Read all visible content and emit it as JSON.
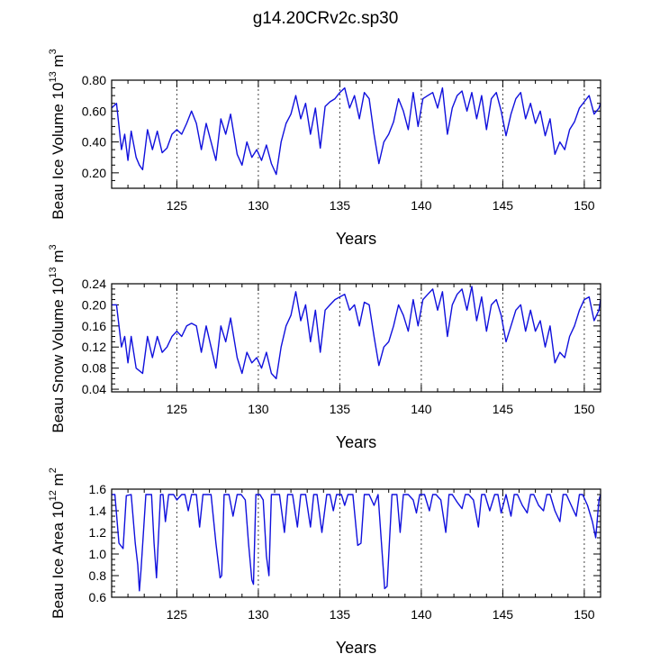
{
  "title": "g14.20CRv2c.sp30",
  "chart_data": [
    {
      "type": "line",
      "ylabel_main": "Beau Ice Volume 10",
      "ylabel_sup1": "13",
      "ylabel_mid": " m",
      "ylabel_sup2": "3",
      "xlabel": "Years",
      "xlim": [
        121,
        151
      ],
      "ylim": [
        0.1,
        0.8
      ],
      "yticks": [
        0.2,
        0.4,
        0.6,
        0.8
      ],
      "ytick_labels": [
        "0.20",
        "0.40",
        "0.60",
        "0.80"
      ],
      "xticks": [
        125,
        130,
        135,
        140,
        145,
        150
      ],
      "xtick_labels": [
        "125",
        "130",
        "135",
        "140",
        "145",
        "150"
      ],
      "series_color": "#1010dd",
      "vlines": [
        125,
        130,
        135,
        140,
        145,
        150
      ],
      "series": [
        {
          "x": [
            121.0,
            121.3,
            121.6,
            121.8,
            122.0,
            122.2,
            122.5,
            122.7,
            122.9,
            123.2,
            123.5,
            123.8,
            124.1,
            124.4,
            124.7,
            125.0,
            125.3,
            125.6,
            125.9,
            126.2,
            126.5,
            126.8,
            127.1,
            127.4,
            127.7,
            128.0,
            128.3,
            128.7,
            129.0,
            129.3,
            129.6,
            129.9,
            130.2,
            130.5,
            130.8,
            131.1,
            131.4,
            131.7,
            132.0,
            132.3,
            132.6,
            132.9,
            133.2,
            133.5,
            133.8,
            134.1,
            134.4,
            134.7,
            135.0,
            135.3,
            135.6,
            135.9,
            136.2,
            136.5,
            136.8,
            137.1,
            137.4,
            137.7,
            138.0,
            138.3,
            138.6,
            138.9,
            139.2,
            139.5,
            139.8,
            140.1,
            140.4,
            140.7,
            141.0,
            141.3,
            141.6,
            141.9,
            142.2,
            142.5,
            142.8,
            143.1,
            143.4,
            143.7,
            144.0,
            144.3,
            144.6,
            144.9,
            145.2,
            145.5,
            145.8,
            146.1,
            146.4,
            146.7,
            147.0,
            147.3,
            147.6,
            147.9,
            148.2,
            148.5,
            148.8,
            149.1,
            149.4,
            149.7,
            150.0,
            150.3,
            150.6,
            150.9,
            151.0
          ],
          "y": [
            0.62,
            0.65,
            0.35,
            0.45,
            0.28,
            0.47,
            0.3,
            0.25,
            0.22,
            0.48,
            0.35,
            0.47,
            0.33,
            0.36,
            0.45,
            0.48,
            0.45,
            0.52,
            0.6,
            0.52,
            0.35,
            0.52,
            0.4,
            0.28,
            0.55,
            0.45,
            0.58,
            0.32,
            0.25,
            0.4,
            0.3,
            0.35,
            0.28,
            0.38,
            0.26,
            0.19,
            0.4,
            0.52,
            0.58,
            0.7,
            0.55,
            0.65,
            0.45,
            0.62,
            0.36,
            0.63,
            0.66,
            0.68,
            0.72,
            0.75,
            0.62,
            0.7,
            0.55,
            0.72,
            0.68,
            0.45,
            0.26,
            0.4,
            0.45,
            0.53,
            0.68,
            0.6,
            0.48,
            0.72,
            0.5,
            0.68,
            0.7,
            0.72,
            0.62,
            0.75,
            0.45,
            0.62,
            0.7,
            0.73,
            0.6,
            0.72,
            0.55,
            0.7,
            0.48,
            0.68,
            0.72,
            0.6,
            0.44,
            0.58,
            0.68,
            0.72,
            0.55,
            0.65,
            0.52,
            0.6,
            0.44,
            0.55,
            0.32,
            0.4,
            0.35,
            0.48,
            0.53,
            0.62,
            0.66,
            0.7,
            0.58,
            0.62,
            0.65
          ]
        }
      ]
    },
    {
      "type": "line",
      "ylabel_main": "Beau Snow Volume 10",
      "ylabel_sup1": "13",
      "ylabel_mid": " m",
      "ylabel_sup2": "3",
      "xlabel": "Years",
      "xlim": [
        121,
        151
      ],
      "ylim": [
        0.035,
        0.24
      ],
      "yticks": [
        0.04,
        0.08,
        0.12,
        0.16,
        0.2,
        0.24
      ],
      "ytick_labels": [
        "0.04",
        "0.08",
        "0.12",
        "0.16",
        "0.20",
        "0.24"
      ],
      "xticks": [
        125,
        130,
        135,
        140,
        145,
        150
      ],
      "xtick_labels": [
        "125",
        "130",
        "135",
        "140",
        "145",
        "150"
      ],
      "series_color": "#1010dd",
      "vlines": [
        125,
        130,
        135,
        140,
        145,
        150
      ],
      "series": [
        {
          "x": [
            121.0,
            121.3,
            121.6,
            121.8,
            122.0,
            122.2,
            122.5,
            122.7,
            122.9,
            123.2,
            123.5,
            123.8,
            124.1,
            124.4,
            124.7,
            125.0,
            125.3,
            125.6,
            125.9,
            126.2,
            126.5,
            126.8,
            127.1,
            127.4,
            127.7,
            128.0,
            128.3,
            128.7,
            129.0,
            129.3,
            129.6,
            129.9,
            130.2,
            130.5,
            130.8,
            131.1,
            131.4,
            131.7,
            132.0,
            132.3,
            132.6,
            132.9,
            133.2,
            133.5,
            133.8,
            134.1,
            134.4,
            134.7,
            135.0,
            135.3,
            135.6,
            135.9,
            136.2,
            136.5,
            136.8,
            137.1,
            137.4,
            137.7,
            138.0,
            138.3,
            138.6,
            138.9,
            139.2,
            139.5,
            139.8,
            140.1,
            140.4,
            140.7,
            141.0,
            141.3,
            141.6,
            141.9,
            142.2,
            142.5,
            142.8,
            143.1,
            143.4,
            143.7,
            144.0,
            144.3,
            144.6,
            144.9,
            145.2,
            145.5,
            145.8,
            146.1,
            146.4,
            146.7,
            147.0,
            147.3,
            147.6,
            147.9,
            148.2,
            148.5,
            148.8,
            149.1,
            149.4,
            149.7,
            150.0,
            150.3,
            150.6,
            150.9,
            151.0
          ],
          "y": [
            0.2,
            0.2,
            0.12,
            0.14,
            0.09,
            0.14,
            0.08,
            0.075,
            0.07,
            0.14,
            0.1,
            0.14,
            0.11,
            0.12,
            0.14,
            0.15,
            0.14,
            0.16,
            0.165,
            0.16,
            0.11,
            0.16,
            0.12,
            0.08,
            0.16,
            0.13,
            0.175,
            0.1,
            0.07,
            0.11,
            0.09,
            0.1,
            0.08,
            0.11,
            0.07,
            0.06,
            0.12,
            0.16,
            0.18,
            0.225,
            0.17,
            0.2,
            0.13,
            0.19,
            0.11,
            0.19,
            0.2,
            0.21,
            0.215,
            0.22,
            0.19,
            0.2,
            0.16,
            0.205,
            0.2,
            0.14,
            0.085,
            0.12,
            0.13,
            0.16,
            0.2,
            0.18,
            0.15,
            0.21,
            0.16,
            0.21,
            0.22,
            0.23,
            0.19,
            0.225,
            0.14,
            0.2,
            0.22,
            0.23,
            0.19,
            0.235,
            0.17,
            0.215,
            0.15,
            0.2,
            0.21,
            0.18,
            0.13,
            0.16,
            0.19,
            0.2,
            0.15,
            0.19,
            0.15,
            0.17,
            0.12,
            0.16,
            0.09,
            0.11,
            0.1,
            0.14,
            0.16,
            0.19,
            0.21,
            0.215,
            0.17,
            0.19,
            0.21
          ]
        }
      ]
    },
    {
      "type": "line",
      "ylabel_main": "Beau Ice Area 10",
      "ylabel_sup1": "12",
      "ylabel_mid": " m",
      "ylabel_sup2": "2",
      "xlabel": "Years",
      "xlim": [
        121,
        151
      ],
      "ylim": [
        0.6,
        1.6
      ],
      "yticks": [
        0.6,
        0.8,
        1.0,
        1.2,
        1.4,
        1.6
      ],
      "ytick_labels": [
        "0.6",
        "0.8",
        "1.0",
        "1.2",
        "1.4",
        "1.6"
      ],
      "xticks": [
        125,
        130,
        135,
        140,
        145,
        150
      ],
      "xtick_labels": [
        "125",
        "130",
        "135",
        "140",
        "145",
        "150"
      ],
      "series_color": "#1010dd",
      "vlines": [
        125,
        130,
        135,
        140,
        145,
        150
      ],
      "series": [
        {
          "x": [
            121.0,
            121.2,
            121.45,
            121.7,
            121.9,
            122.2,
            122.45,
            122.6,
            122.7,
            122.8,
            123.1,
            123.45,
            123.6,
            123.75,
            124.0,
            124.15,
            124.3,
            124.5,
            124.8,
            125.0,
            125.3,
            125.5,
            125.7,
            125.9,
            126.2,
            126.4,
            126.6,
            126.8,
            127.1,
            127.4,
            127.65,
            127.75,
            127.9,
            128.2,
            128.45,
            128.7,
            128.95,
            129.2,
            129.4,
            129.6,
            129.7,
            129.85,
            130.1,
            130.3,
            130.5,
            130.65,
            130.8,
            131.0,
            131.3,
            131.6,
            131.8,
            132.1,
            132.4,
            132.6,
            132.9,
            133.2,
            133.4,
            133.6,
            133.9,
            134.2,
            134.4,
            134.6,
            134.8,
            135.1,
            135.3,
            135.5,
            135.8,
            136.1,
            136.3,
            136.5,
            136.8,
            137.1,
            137.35,
            137.6,
            137.75,
            137.9,
            138.2,
            138.5,
            138.7,
            138.9,
            139.2,
            139.5,
            139.7,
            139.9,
            140.2,
            140.5,
            140.7,
            140.9,
            141.2,
            141.5,
            141.7,
            141.9,
            142.2,
            142.5,
            142.7,
            142.9,
            143.2,
            143.5,
            143.7,
            143.9,
            144.2,
            144.5,
            144.7,
            144.9,
            145.2,
            145.5,
            145.7,
            145.9,
            146.2,
            146.5,
            146.7,
            146.9,
            147.2,
            147.5,
            147.7,
            147.9,
            148.2,
            148.5,
            148.7,
            148.9,
            149.2,
            149.5,
            149.7,
            149.9,
            150.2,
            150.5,
            150.7,
            150.9,
            151.0
          ],
          "y": [
            1.55,
            1.55,
            1.1,
            1.05,
            1.54,
            1.55,
            1.1,
            0.9,
            0.66,
            0.85,
            1.55,
            1.55,
            1.1,
            0.78,
            1.55,
            1.55,
            1.3,
            1.55,
            1.55,
            1.5,
            1.55,
            1.55,
            1.4,
            1.55,
            1.55,
            1.25,
            1.55,
            1.55,
            1.55,
            1.1,
            0.78,
            0.8,
            1.55,
            1.55,
            1.35,
            1.55,
            1.55,
            1.5,
            1.1,
            0.76,
            0.72,
            1.55,
            1.55,
            1.5,
            0.98,
            0.8,
            1.55,
            1.55,
            1.55,
            1.2,
            1.55,
            1.55,
            1.25,
            1.55,
            1.55,
            1.25,
            1.55,
            1.55,
            1.2,
            1.55,
            1.55,
            1.4,
            1.55,
            1.55,
            1.45,
            1.55,
            1.55,
            1.08,
            1.1,
            1.55,
            1.55,
            1.45,
            1.55,
            1.0,
            0.68,
            0.7,
            1.55,
            1.55,
            1.2,
            1.55,
            1.55,
            1.5,
            1.38,
            1.55,
            1.55,
            1.4,
            1.55,
            1.55,
            1.5,
            1.2,
            1.55,
            1.55,
            1.48,
            1.42,
            1.55,
            1.55,
            1.5,
            1.25,
            1.55,
            1.55,
            1.4,
            1.55,
            1.55,
            1.38,
            1.55,
            1.35,
            1.55,
            1.55,
            1.45,
            1.38,
            1.55,
            1.55,
            1.45,
            1.4,
            1.55,
            1.55,
            1.4,
            1.3,
            1.55,
            1.55,
            1.45,
            1.35,
            1.55,
            1.55,
            1.45,
            1.3,
            1.15,
            1.5,
            1.55
          ]
        }
      ]
    }
  ]
}
